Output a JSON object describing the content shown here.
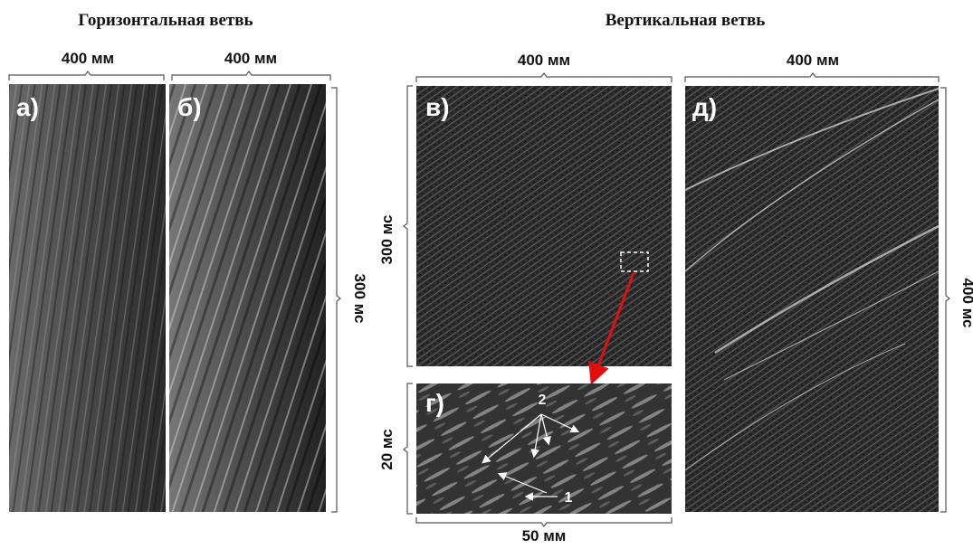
{
  "headings": {
    "horizontal": "Горизонтальная ветвь",
    "vertical": "Вертикальная ветвь"
  },
  "panels": [
    {
      "label": "а)",
      "top_scale": "400 мм"
    },
    {
      "label": "б)",
      "top_scale": "400 мм",
      "right_scale": "300 мс"
    },
    {
      "label": "в)",
      "top_scale": "400 мм",
      "left_scale": "300 мс"
    },
    {
      "label": "г)",
      "left_scale": "20 мс",
      "bottom_scale": "50 мм",
      "annotations": [
        "2",
        "1"
      ]
    },
    {
      "label": "д)",
      "top_scale": "400 мм",
      "right_scale": "400 мс"
    }
  ]
}
